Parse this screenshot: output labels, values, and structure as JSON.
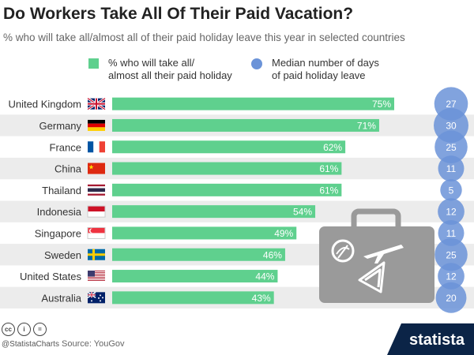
{
  "chart_data": {
    "type": "bar",
    "title": "Do Workers Take All Of Their Paid Vacation?",
    "subtitle": "% who will take all/almost all of their paid holiday leave this year in selected countries",
    "categories": [
      "United Kingdom",
      "Germany",
      "France",
      "China",
      "Thailand",
      "Indonesia",
      "Singapore",
      "Sweden",
      "United States",
      "Australia"
    ],
    "series": [
      {
        "name": "% who will take all/\nalmost all their paid holiday",
        "values": [
          75,
          71,
          62,
          61,
          61,
          54,
          49,
          46,
          44,
          43
        ],
        "unit": "%"
      },
      {
        "name": "Median number of days\nof paid holiday leave",
        "values": [
          27,
          30,
          25,
          11,
          5,
          12,
          11,
          25,
          12,
          20
        ]
      }
    ],
    "xlim": [
      0,
      100
    ],
    "grid": false,
    "legend": "top"
  },
  "colors": {
    "bar": "#5fd08e",
    "bubble": "#6b93d8",
    "band": "#ececec",
    "suitcase": "#9a9a9a",
    "brand": "#0b2447"
  },
  "flags": [
    "uk-flag",
    "germany-flag",
    "france-flag",
    "china-flag",
    "thailand-flag",
    "indonesia-flag",
    "singapore-flag",
    "sweden-flag",
    "united-states-flag",
    "australia-flag"
  ],
  "footer": {
    "cc_icons": [
      "cc",
      "i",
      "="
    ],
    "handle": "@StatistaCharts",
    "source": "Source: YouGov",
    "brand": "statista"
  }
}
